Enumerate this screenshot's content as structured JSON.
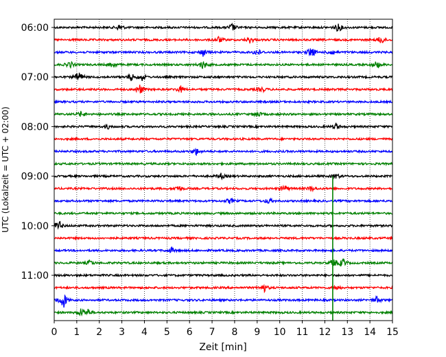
{
  "chart_data": {
    "type": "line",
    "title": "",
    "xlabel": "Zeit  [min]",
    "ylabel": "UTC (Lokalzeit = UTC + 02:00)",
    "xlim": [
      0,
      15
    ],
    "x_ticks": [
      "0",
      "1",
      "2",
      "3",
      "4",
      "5",
      "6",
      "7",
      "8",
      "9",
      "10",
      "11",
      "12",
      "13",
      "14",
      "15"
    ],
    "y_ticks": [
      "06:00",
      "07:00",
      "08:00",
      "09:00",
      "10:00",
      "11:00"
    ],
    "grid": "vertical dotted",
    "trace_interval_minutes": 15,
    "traces_per_hour": 4,
    "color_cycle": [
      "#000000",
      "#ff0000",
      "#0000ff",
      "#008000"
    ],
    "rows": [
      {
        "start": "06:00",
        "color": "#000000",
        "events": [
          [
            2.9,
            5
          ],
          [
            7.9,
            6
          ],
          [
            12.6,
            7
          ]
        ]
      },
      {
        "start": "06:15",
        "color": "#ff0000",
        "events": [
          [
            7.3,
            5
          ],
          [
            8.7,
            5
          ],
          [
            14.5,
            7
          ]
        ]
      },
      {
        "start": "06:30",
        "color": "#0000ff",
        "events": [
          [
            6.6,
            6
          ],
          [
            9.0,
            6
          ],
          [
            11.4,
            9
          ],
          [
            12.3,
            5
          ]
        ]
      },
      {
        "start": "06:45",
        "color": "#008000",
        "events": [
          [
            0.7,
            5
          ],
          [
            2.6,
            5
          ],
          [
            6.6,
            7
          ],
          [
            14.3,
            6
          ]
        ]
      },
      {
        "start": "07:00",
        "color": "#000000",
        "events": [
          [
            1.1,
            9
          ],
          [
            3.4,
            6
          ],
          [
            3.9,
            5
          ]
        ]
      },
      {
        "start": "07:15",
        "color": "#ff0000",
        "events": [
          [
            3.8,
            8
          ],
          [
            5.6,
            5
          ],
          [
            9.2,
            4
          ]
        ]
      },
      {
        "start": "07:30",
        "color": "#0000ff",
        "events": []
      },
      {
        "start": "07:45",
        "color": "#008000",
        "events": [
          [
            1.2,
            4
          ],
          [
            9.0,
            5
          ]
        ]
      },
      {
        "start": "08:00",
        "color": "#000000",
        "events": [
          [
            2.4,
            3
          ],
          [
            12.5,
            5
          ]
        ]
      },
      {
        "start": "08:15",
        "color": "#ff0000",
        "events": []
      },
      {
        "start": "08:30",
        "color": "#0000ff",
        "events": [
          [
            6.3,
            5
          ]
        ]
      },
      {
        "start": "08:45",
        "color": "#008000",
        "events": []
      },
      {
        "start": "09:00",
        "color": "#000000",
        "events": [
          [
            7.4,
            4
          ],
          [
            12.5,
            4
          ]
        ]
      },
      {
        "start": "09:15",
        "color": "#ff0000",
        "events": [
          [
            5.5,
            5
          ],
          [
            10.2,
            5
          ],
          [
            11.4,
            4
          ]
        ]
      },
      {
        "start": "09:30",
        "color": "#0000ff",
        "events": [
          [
            7.8,
            4
          ],
          [
            9.5,
            4
          ]
        ]
      },
      {
        "start": "09:45",
        "color": "#008000",
        "events": []
      },
      {
        "start": "10:00",
        "color": "#000000",
        "events": [
          [
            0.2,
            8
          ]
        ]
      },
      {
        "start": "10:15",
        "color": "#ff0000",
        "events": []
      },
      {
        "start": "10:30",
        "color": "#0000ff",
        "events": [
          [
            5.2,
            4
          ]
        ]
      },
      {
        "start": "10:45",
        "color": "#008000",
        "events": [
          [
            1.6,
            4
          ],
          [
            12.4,
            6
          ],
          [
            12.8,
            6
          ]
        ]
      },
      {
        "start": "11:00",
        "color": "#000000",
        "events": []
      },
      {
        "start": "11:15",
        "color": "#ff0000",
        "events": [
          [
            9.3,
            6
          ],
          [
            12.5,
            4
          ]
        ]
      },
      {
        "start": "11:30",
        "color": "#0000ff",
        "events": [
          [
            0.4,
            14
          ],
          [
            14.3,
            5
          ]
        ]
      },
      {
        "start": "11:45",
        "color": "#008000",
        "events": [
          [
            1.2,
            6
          ],
          [
            1.5,
            5
          ]
        ]
      }
    ],
    "vertical_marker": {
      "x": 12.35,
      "from_row": 12,
      "to_row": 23,
      "color": "#008000"
    }
  }
}
